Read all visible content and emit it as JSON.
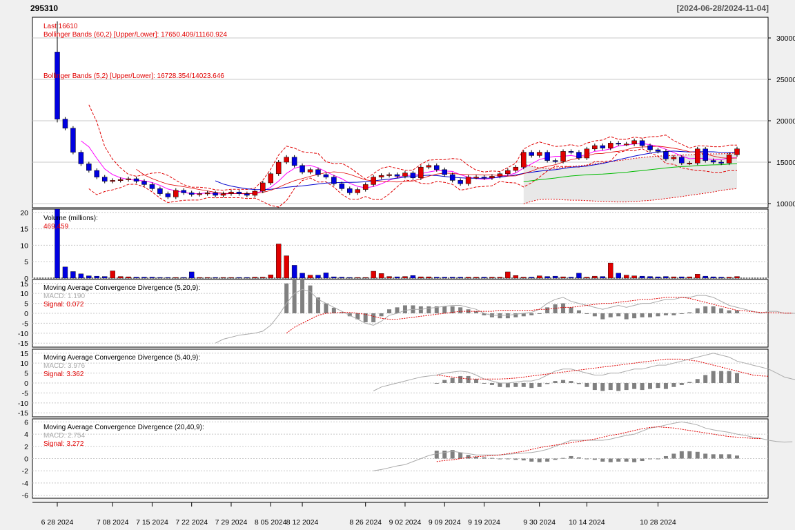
{
  "header": {
    "ticker": "295310",
    "date_range": "[2024-06-28/2024-11-04]"
  },
  "legends": {
    "last": "Last 16610",
    "bb60": "Bollinger Bands (60,2) [Upper/Lower]: 17650.409/11160.924",
    "bb5": "Bollinger Bands (5,2) [Upper/Lower]: 16728.354/14023.646",
    "volume_title": "Volume (millions):",
    "volume_value": "469,459",
    "macd1_title": "Moving Average Convergence Divergence (5,20,9):",
    "macd1_macd": "MACD: 1.190",
    "macd1_signal": "Signal: 0.072",
    "macd2_title": "Moving Average Convergence Divergence (5,40,9):",
    "macd2_macd": "MACD: 3.976",
    "macd2_signal": "Signal: 3.362",
    "macd3_title": "Moving Average Convergence Divergence (20,40,9):",
    "macd3_macd": "MACD: 2.754",
    "macd3_signal": "Signal: 3.272"
  },
  "colors": {
    "up": "#e00000",
    "down": "#0000e0",
    "band": "#e00000",
    "ma_blue": "#0000cc",
    "ma_green": "#00bb00",
    "ma_pink": "#ff00ff",
    "hist": "#808080",
    "macd": "#aaaaaa",
    "signal": "#e00000"
  },
  "chart_data": [
    {
      "type": "candlestick",
      "panel": "price",
      "x_labels": [
        "6 28 2024",
        "7 08 2024",
        "7 15 2024",
        "7 22 2024",
        "7 29 2024",
        "8 05 2024",
        "8 12 2024",
        "8 26 2024",
        "9 02 2024",
        "9 09 2024",
        "9 19 2024",
        "9 30 2024",
        "10 14 2024",
        "10 28 2024"
      ],
      "x_label_idx": [
        0,
        7,
        12,
        17,
        22,
        27,
        31,
        39,
        44,
        49,
        54,
        61,
        67,
        76
      ],
      "ylim": [
        9500,
        32500
      ],
      "yticks": [
        10000,
        15000,
        20000,
        25000,
        30000
      ],
      "closes": [
        20200,
        19100,
        16200,
        14800,
        14000,
        13200,
        12700,
        12800,
        12900,
        13000,
        12700,
        12300,
        11800,
        11200,
        10800,
        11600,
        11300,
        11100,
        11200,
        11300,
        11000,
        11200,
        11400,
        11200,
        11000,
        11500,
        12500,
        13600,
        15000,
        15600,
        14600,
        13800,
        14100,
        13500,
        13200,
        12400,
        11800,
        11300,
        11700,
        12300,
        13200,
        13400,
        13500,
        13300,
        13700,
        13100,
        14400,
        14600,
        14100,
        13500,
        12800,
        12400,
        13200,
        13200,
        13100,
        13300,
        13600,
        14000,
        14400,
        16200,
        15800,
        16200,
        15200,
        15100,
        16300,
        16200,
        15500,
        16600,
        17000,
        16700,
        17300,
        17200,
        17200,
        17600,
        17000,
        16500,
        16300,
        15400,
        15600,
        14900,
        14900,
        16600,
        15200,
        15000,
        14900,
        15900,
        16610
      ],
      "opens": [
        28300,
        20200,
        19100,
        16200,
        14800,
        14000,
        13200,
        12700,
        12800,
        12900,
        13000,
        12700,
        12300,
        11800,
        11200,
        10800,
        11600,
        11300,
        11100,
        11200,
        11300,
        11000,
        11200,
        11400,
        11200,
        11000,
        11500,
        12500,
        13600,
        15000,
        15600,
        14600,
        13800,
        14100,
        13500,
        13200,
        12400,
        11800,
        11300,
        11700,
        12300,
        13200,
        13400,
        13500,
        13300,
        13700,
        13100,
        14400,
        14600,
        14100,
        13500,
        12800,
        12400,
        13200,
        13200,
        13100,
        13300,
        13600,
        14000,
        14400,
        16200,
        15800,
        16200,
        15200,
        15100,
        16300,
        16200,
        15500,
        16600,
        17000,
        16700,
        17300,
        17200,
        17200,
        17600,
        17000,
        16500,
        16300,
        15400,
        15600,
        14900,
        14900,
        16600,
        15200,
        15000,
        14900,
        15900
      ],
      "volumes": [
        24,
        3.4,
        2.0,
        1.3,
        0.7,
        0.6,
        0.5,
        2.2,
        0.5,
        0.4,
        0.3,
        0.3,
        0.3,
        0.2,
        0.2,
        0.2,
        0.2,
        1.9,
        0.2,
        0.2,
        0.2,
        0.2,
        0.2,
        0.2,
        0.2,
        0.3,
        0.3,
        1.0,
        10.4,
        6.8,
        3.9,
        1.5,
        0.9,
        0.9,
        1.6,
        0.4,
        0.3,
        0.2,
        0.2,
        0.2,
        2.1,
        1.4,
        0.5,
        0.4,
        0.5,
        0.8,
        0.4,
        0.4,
        0.3,
        0.3,
        0.3,
        0.3,
        0.3,
        0.3,
        0.3,
        0.3,
        0.3,
        1.9,
        0.8,
        0.3,
        0.3,
        0.7,
        0.5,
        0.6,
        0.4,
        0.3,
        1.5,
        0.3,
        0.6,
        0.5,
        4.6,
        1.5,
        0.9,
        0.7,
        0.6,
        0.5,
        0.4,
        0.5,
        0.4,
        0.4,
        0.4,
        1.2,
        0.6,
        0.4,
        0.3,
        0.3,
        0.5
      ]
    },
    {
      "type": "bar",
      "panel": "volume",
      "title": "Volume (millions):",
      "ylim": [
        0,
        21
      ],
      "yticks": [
        0,
        5,
        10,
        15,
        20
      ]
    },
    {
      "type": "line",
      "panel": "macd",
      "title": "Moving Average Convergence Divergence (5,20,9):",
      "ylim": [
        -17,
        17
      ],
      "yticks": [
        -15,
        -10,
        -5,
        0,
        5,
        10,
        15
      ],
      "macd_start": 20,
      "macd": [
        -15,
        -13,
        -12,
        -11,
        -10.5,
        -10,
        -9,
        -6,
        -1,
        5,
        10,
        12,
        11,
        7,
        5,
        3,
        1,
        -1,
        -3,
        -5,
        -6,
        -4,
        -1,
        0,
        1.5,
        2,
        2,
        2.5,
        3,
        3.5,
        4,
        4,
        3,
        2,
        0,
        -1,
        -1,
        -1,
        -0.5,
        0,
        0.5,
        2,
        5,
        7,
        8,
        6,
        5,
        4,
        3,
        2,
        3,
        4,
        3,
        4,
        5,
        5,
        6,
        7,
        7,
        8,
        8,
        9,
        9,
        8,
        6,
        4,
        3,
        2,
        1,
        0,
        1,
        1,
        0,
        0,
        0,
        0.5,
        1.19
      ],
      "signal_start": 29,
      "signal": [
        -10,
        -7,
        -5,
        -3,
        -1,
        0,
        0.2,
        0.5,
        0.5,
        0,
        -0.5,
        -1.5,
        -2.5,
        -3,
        -3,
        -2.5,
        -2,
        -1.5,
        -1,
        -0.5,
        0,
        0.5,
        1,
        1,
        1,
        1,
        1,
        1.5,
        1.5,
        1.5,
        1.5,
        1.5,
        2,
        2,
        2.5,
        3,
        3,
        3.5,
        4,
        4.5,
        5,
        5,
        5.5,
        6,
        6.5,
        7,
        7,
        7.5,
        8,
        8,
        8,
        7.5,
        6.5,
        5.5,
        4.5,
        3.5,
        2.5,
        1.5,
        1.2,
        0.8,
        0.5,
        0.3,
        0.2,
        0.1,
        0.072
      ]
    },
    {
      "type": "line",
      "panel": "macd",
      "title": "Moving Average Convergence Divergence (5,40,9):",
      "ylim": [
        -17,
        17
      ],
      "yticks": [
        -15,
        -10,
        -5,
        0,
        5,
        10,
        15
      ],
      "macd_start": 40,
      "macd": [
        -4,
        -2,
        -1,
        0,
        1,
        2,
        3,
        3.5,
        4,
        5,
        5.5,
        6,
        5.5,
        4,
        2,
        1,
        0,
        0,
        0.5,
        1,
        1,
        2,
        4,
        6,
        7,
        7,
        6,
        5,
        4,
        4,
        5,
        5,
        6,
        7,
        7,
        8,
        9,
        9,
        10,
        11,
        12,
        13,
        14,
        15,
        14,
        13,
        11,
        10,
        9,
        8,
        7,
        5,
        3,
        2,
        1.5,
        2,
        3,
        3.976
      ],
      "signal_start": 48,
      "signal": [
        4,
        3.5,
        3,
        2.5,
        2,
        2,
        2,
        2,
        2,
        2.2,
        2.5,
        3,
        3.5,
        4,
        4.5,
        5,
        5.5,
        6,
        6.5,
        7,
        7.5,
        8,
        8.5,
        9,
        9.5,
        10,
        10.5,
        11,
        11.5,
        12,
        12,
        12,
        11.5,
        11,
        10,
        9,
        8,
        7,
        6,
        5,
        4,
        3.6,
        3.362
      ]
    },
    {
      "type": "line",
      "panel": "macd",
      "title": "Moving Average Convergence Divergence (20,40,9):",
      "ylim": [
        -6.5,
        6.5
      ],
      "yticks": [
        -6,
        -4,
        -2,
        0,
        2,
        4,
        6
      ],
      "macd_start": 40,
      "macd": [
        -2,
        -1.8,
        -1.5,
        -1.2,
        -1,
        -0.5,
        0,
        0.5,
        0.8,
        1,
        1.2,
        1,
        0.8,
        0.6,
        0.6,
        0.6,
        0.6,
        0.7,
        0.8,
        0.9,
        1,
        1.2,
        1.5,
        2,
        2.5,
        3,
        3,
        3,
        3,
        3,
        3.2,
        3.5,
        3.8,
        4,
        4.5,
        5,
        5.2,
        5.5,
        5.8,
        6,
        5.8,
        5.5,
        5,
        4.7,
        4.5,
        4.3,
        4,
        3.8,
        3.5,
        3.3,
        3,
        2.8,
        2.7,
        2.754
      ],
      "signal_start": 48,
      "signal": [
        -0.5,
        -0.3,
        -0.2,
        0,
        0.2,
        0.3,
        0.4,
        0.5,
        0.6,
        0.8,
        1,
        1.2,
        1.5,
        1.8,
        2,
        2.2,
        2.4,
        2.6,
        2.8,
        3,
        3.2,
        3.5,
        3.8,
        4,
        4.3,
        4.6,
        4.9,
        5.1,
        5.2,
        5.1,
        5,
        4.8,
        4.6,
        4.4,
        4.2,
        4,
        3.8,
        3.6,
        3.5,
        3.4,
        3.3,
        3.272
      ]
    }
  ]
}
